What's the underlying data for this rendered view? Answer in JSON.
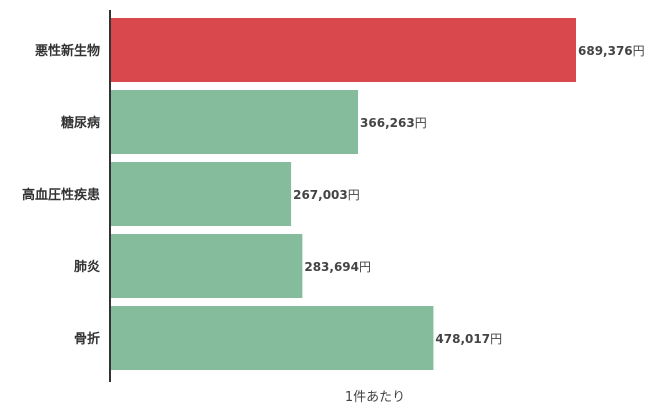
{
  "chart_data": {
    "type": "bar",
    "orientation": "horizontal",
    "categories": [
      "悪性新生物",
      "糖尿病",
      "高血圧性疾患",
      "肺炎",
      "骨折"
    ],
    "values": [
      689376,
      366263,
      267003,
      283694,
      478017
    ],
    "value_labels": [
      "689,376",
      "366,263",
      "267,003",
      "283,694",
      "478,017"
    ],
    "unit": "円",
    "xlabel": "1件あたり",
    "xlim": [
      0,
      689376
    ],
    "grid": false,
    "legend": "none",
    "colors": {
      "highlight": "#d9484d",
      "default": "#84bc9c",
      "axis": "#333333"
    },
    "highlight_index": 0
  }
}
